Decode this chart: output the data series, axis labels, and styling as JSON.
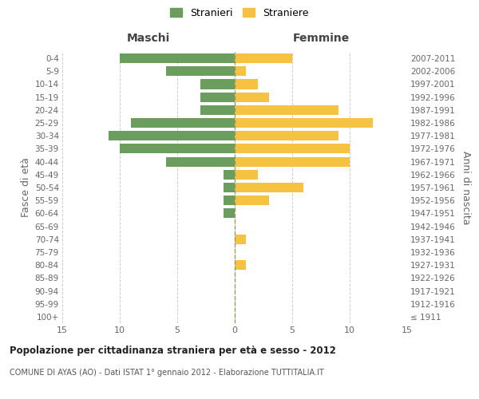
{
  "age_groups": [
    "100+",
    "95-99",
    "90-94",
    "85-89",
    "80-84",
    "75-79",
    "70-74",
    "65-69",
    "60-64",
    "55-59",
    "50-54",
    "45-49",
    "40-44",
    "35-39",
    "30-34",
    "25-29",
    "20-24",
    "15-19",
    "10-14",
    "5-9",
    "0-4"
  ],
  "birth_years": [
    "≤ 1911",
    "1912-1916",
    "1917-1921",
    "1922-1926",
    "1927-1931",
    "1932-1936",
    "1937-1941",
    "1942-1946",
    "1947-1951",
    "1952-1956",
    "1957-1961",
    "1962-1966",
    "1967-1971",
    "1972-1976",
    "1977-1981",
    "1982-1986",
    "1987-1991",
    "1992-1996",
    "1997-2001",
    "2002-2006",
    "2007-2011"
  ],
  "maschi": [
    0,
    0,
    0,
    0,
    0,
    0,
    0,
    0,
    1,
    1,
    1,
    1,
    6,
    10,
    11,
    9,
    3,
    3,
    3,
    6,
    10
  ],
  "femmine": [
    0,
    0,
    0,
    0,
    1,
    0,
    1,
    0,
    0,
    3,
    6,
    2,
    10,
    10,
    9,
    12,
    9,
    3,
    2,
    1,
    5
  ],
  "color_maschi": "#6b9e5e",
  "color_femmine": "#f5c242",
  "title": "Popolazione per cittadinanza straniera per età e sesso - 2012",
  "subtitle": "COMUNE DI AYAS (AO) - Dati ISTAT 1° gennaio 2012 - Elaborazione TUTTITALIA.IT",
  "legend_maschi": "Stranieri",
  "legend_femmine": "Straniere",
  "xlabel_left": "Maschi",
  "xlabel_right": "Femmine",
  "ylabel_left": "Fasce di età",
  "ylabel_right": "Anni di nascita",
  "xlim": 15,
  "background_color": "#ffffff",
  "grid_color": "#cccccc"
}
